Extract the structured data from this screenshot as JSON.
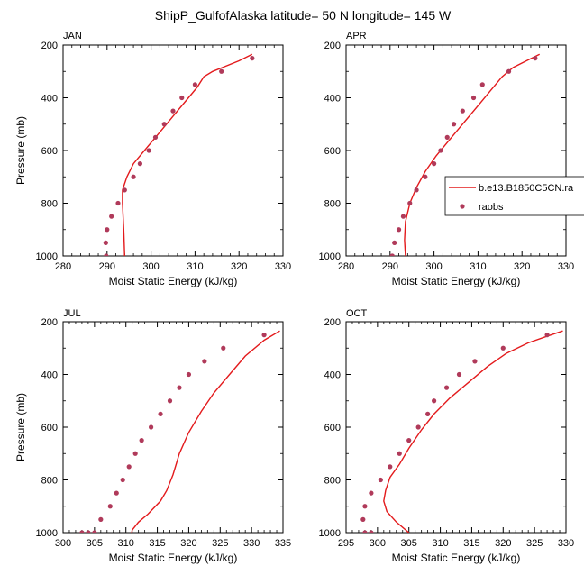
{
  "title": "ShipP_GulfofAlaska  latitude= 50 N longitude= 145 W",
  "colors": {
    "model": "#e31a1c",
    "obs": "#b03a5a",
    "axis": "#000000"
  },
  "legend": {
    "model_label": "b.e13.B1850C5CN.ra",
    "obs_label": "raobs"
  },
  "chart_data": [
    {
      "type": "line",
      "label": "JAN",
      "xlabel": "Moist Static Energy (kJ/kg)",
      "ylabel": "Pressure (mb)",
      "xlim": [
        280,
        330
      ],
      "ylim": [
        200,
        1000
      ],
      "y_inverted": true,
      "xticks": [
        280,
        290,
        300,
        310,
        320,
        330
      ],
      "yticks": [
        200,
        400,
        600,
        800,
        1000
      ],
      "model": {
        "x": [
          323,
          320,
          317,
          314,
          312,
          310.5,
          308.5,
          306,
          303.5,
          301,
          298.5,
          296,
          294.5,
          293.5,
          293.5,
          293.8,
          294
        ],
        "y": [
          235,
          260,
          280,
          300,
          320,
          360,
          400,
          450,
          500,
          550,
          600,
          650,
          700,
          750,
          800,
          900,
          1000
        ]
      },
      "obs": {
        "x": [
          323,
          316,
          310,
          307,
          305,
          303,
          301,
          299.5,
          297.5,
          296,
          294,
          292.5,
          291,
          290,
          289.7,
          289.8
        ],
        "y": [
          250,
          300,
          350,
          400,
          450,
          500,
          550,
          600,
          650,
          700,
          750,
          800,
          850,
          900,
          950,
          1000
        ]
      }
    },
    {
      "type": "line",
      "label": "APR",
      "xlabel": "Moist Static Energy (kJ/kg)",
      "ylabel": "",
      "xlim": [
        280,
        330
      ],
      "ylim": [
        200,
        1000
      ],
      "y_inverted": true,
      "xticks": [
        280,
        290,
        300,
        310,
        320,
        330
      ],
      "yticks": [
        200,
        400,
        600,
        800,
        1000
      ],
      "model": {
        "x": [
          324,
          321,
          318,
          315.5,
          313,
          310.5,
          308,
          305.5,
          303,
          300.5,
          298,
          296,
          294.5,
          293.5,
          293.3,
          293.5
        ],
        "y": [
          235,
          260,
          285,
          320,
          370,
          420,
          470,
          520,
          570,
          620,
          680,
          740,
          800,
          870,
          940,
          1000
        ]
      },
      "obs": {
        "x": [
          323,
          317,
          311,
          309,
          306.5,
          304.5,
          303,
          301.5,
          300,
          298,
          296,
          294.5,
          293,
          292,
          291,
          290.5,
          290.5
        ],
        "y": [
          250,
          300,
          350,
          400,
          450,
          500,
          550,
          600,
          650,
          700,
          750,
          800,
          850,
          900,
          950,
          1000,
          1000
        ]
      }
    },
    {
      "type": "line",
      "label": "JUL",
      "xlabel": "Moist Static Energy (kJ/kg)",
      "ylabel": "Pressure (mb)",
      "xlim": [
        300,
        335
      ],
      "ylim": [
        200,
        1000
      ],
      "y_inverted": true,
      "xticks": [
        300,
        305,
        310,
        315,
        320,
        325,
        330,
        335
      ],
      "yticks": [
        200,
        400,
        600,
        800,
        1000
      ],
      "model": {
        "x": [
          334.5,
          332,
          329,
          326.5,
          324,
          322,
          320,
          318.5,
          318,
          317.5,
          316.5,
          315.5,
          313.5,
          312,
          311,
          310.8
        ],
        "y": [
          235,
          270,
          330,
          400,
          470,
          540,
          620,
          700,
          740,
          780,
          840,
          880,
          930,
          960,
          990,
          1020
        ]
      },
      "obs": {
        "x": [
          332,
          325.5,
          322.5,
          320,
          318.5,
          317,
          315.5,
          314,
          312.5,
          311.5,
          310.5,
          309.5,
          308.5,
          307.5,
          306,
          305,
          304,
          303
        ],
        "y": [
          250,
          300,
          350,
          400,
          450,
          500,
          550,
          600,
          650,
          700,
          750,
          800,
          850,
          900,
          950,
          1000,
          1000,
          1000
        ]
      }
    },
    {
      "type": "line",
      "label": "OCT",
      "xlabel": "Moist Static Energy (kJ/kg)",
      "ylabel": "",
      "xlim": [
        295,
        330
      ],
      "ylim": [
        200,
        1000
      ],
      "y_inverted": true,
      "xticks": [
        295,
        300,
        305,
        310,
        315,
        320,
        325,
        330
      ],
      "yticks": [
        200,
        400,
        600,
        800,
        1000
      ],
      "model": {
        "x": [
          329.5,
          327,
          324,
          320.5,
          317.5,
          314.5,
          311.5,
          309,
          307,
          305,
          303.5,
          302,
          301.3,
          301,
          301.5,
          303,
          305
        ],
        "y": [
          235,
          255,
          280,
          320,
          370,
          430,
          490,
          550,
          610,
          680,
          740,
          790,
          840,
          880,
          920,
          960,
          1000
        ]
      },
      "obs": {
        "x": [
          327,
          320,
          315.5,
          313,
          311,
          309,
          308,
          306.5,
          305,
          303.5,
          302,
          300.5,
          299,
          298,
          297.7,
          298,
          299
        ],
        "y": [
          250,
          300,
          350,
          400,
          450,
          500,
          550,
          600,
          650,
          700,
          750,
          800,
          850,
          900,
          950,
          1000,
          1000
        ]
      }
    }
  ]
}
